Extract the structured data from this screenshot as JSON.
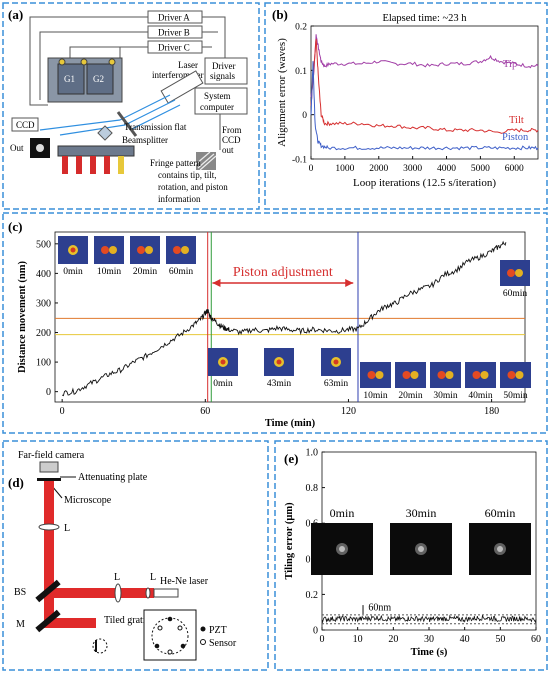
{
  "colors": {
    "frame": "#3a8fd8",
    "tip": "#a13ea6",
    "tilt": "#d62f2f",
    "piston": "#3e5fc8",
    "orange_line": "#e07a2e",
    "yellow_line": "#e7c83a",
    "red_beam": "#e02a2a",
    "black": "#111111"
  },
  "panel_a": {
    "label": "(a)",
    "drivers": [
      "Driver A",
      "Driver B",
      "Driver C"
    ],
    "driver_signals": [
      "Driver",
      "signals"
    ],
    "gratings": [
      "G1",
      "G2"
    ],
    "laser": [
      "Laser",
      "interferometer"
    ],
    "system_computer": [
      "System",
      "computer"
    ],
    "ccd": "CCD",
    "out": "Out",
    "transmission_flat": "Transmission flat",
    "beamsplitter": "Beamsplitter",
    "from_ccd": [
      "From",
      "CCD",
      "out"
    ],
    "fringe": [
      "Fringe pattern",
      "contains tip, tilt,",
      "rotation, and piston",
      "information"
    ]
  },
  "panel_b": {
    "label": "(b)",
    "note": "Elapsed time: ~23 h",
    "series_labels": {
      "tip": "Tip",
      "tilt": "Tilt",
      "piston": "Piston"
    }
  },
  "panel_c": {
    "label": "(c)",
    "annotation": "Piston adjustment",
    "top_left_frames": [
      "0min",
      "10min",
      "20min",
      "60min"
    ],
    "middle_frames": [
      "0min",
      "43min",
      "63min"
    ],
    "right_frames": [
      "10min",
      "20min",
      "30min",
      "40min",
      "50min"
    ],
    "end_frame": "60min"
  },
  "panel_d": {
    "label": "(d)",
    "far_field": "Far-field camera",
    "attenuating": "Attenuating plate",
    "microscope": "Microscope",
    "lens": "L",
    "bs": "BS",
    "mirror": "M",
    "laser": "He-Ne laser",
    "tiled": "Tiled gratings",
    "pzt": "PZT",
    "sensor": "Sensor"
  },
  "panel_e": {
    "label": "(e)",
    "frames": [
      "0min",
      "30min",
      "60min"
    ],
    "annotation": "60nm"
  },
  "chart_data": [
    {
      "id": "b",
      "type": "line",
      "title": "Elapsed time: ~23 h",
      "xlabel": "Loop iterations (12.5 s/iteration)",
      "ylabel": "Alignment error (waves)",
      "xlim": [
        0,
        6700
      ],
      "ylim": [
        -0.1,
        0.2
      ],
      "xticks": [
        0,
        1000,
        2000,
        3000,
        4000,
        5000,
        6000
      ],
      "xtick_labels": [
        "0",
        "1000",
        "2000",
        "3000",
        "4000",
        "5000",
        "6000"
      ],
      "yticks": [
        -0.1,
        0,
        0.1,
        0.2
      ],
      "ytick_labels": [
        "-0.1",
        "0",
        "0.1",
        "0.2"
      ],
      "series": [
        {
          "name": "Tip",
          "color": "#a13ea6",
          "x": [
            0,
            80,
            150,
            220,
            300,
            400,
            600,
            1000,
            1500,
            2000,
            2500,
            3000,
            3500,
            4000,
            4500,
            5000,
            5300,
            5600,
            6000,
            6400,
            6700
          ],
          "y": [
            0.04,
            0.09,
            0.18,
            0.15,
            0.12,
            0.11,
            0.115,
            0.115,
            0.115,
            0.12,
            0.115,
            0.115,
            0.11,
            0.115,
            0.115,
            0.12,
            0.13,
            0.12,
            0.115,
            0.11,
            0.11
          ]
        },
        {
          "name": "Tilt",
          "color": "#d62f2f",
          "x": [
            0,
            80,
            150,
            220,
            300,
            400,
            600,
            1000,
            1500,
            2000,
            2500,
            3000,
            3500,
            4000,
            4500,
            5000,
            5500,
            6000,
            6400,
            6700
          ],
          "y": [
            0.02,
            0.1,
            0.17,
            0.08,
            0.0,
            -0.02,
            -0.02,
            -0.02,
            -0.02,
            -0.025,
            -0.025,
            -0.03,
            -0.03,
            -0.035,
            -0.035,
            -0.035,
            -0.04,
            -0.035,
            -0.035,
            -0.035
          ]
        },
        {
          "name": "Piston",
          "color": "#3e5fc8",
          "x": [
            0,
            60,
            120,
            200,
            300,
            500,
            1000,
            1500,
            2000,
            2500,
            3000,
            3500,
            4000,
            4500,
            5000,
            5500,
            6000,
            6400,
            6700
          ],
          "y": [
            0.0,
            0.12,
            -0.02,
            -0.06,
            -0.07,
            -0.075,
            -0.075,
            -0.075,
            -0.075,
            -0.075,
            -0.075,
            -0.075,
            -0.075,
            -0.075,
            -0.075,
            -0.075,
            -0.075,
            -0.075,
            -0.075
          ]
        }
      ]
    },
    {
      "id": "c",
      "type": "line",
      "xlabel": "Time (min)",
      "ylabel": "Distance movement (nm)",
      "xlim": [
        -3,
        194
      ],
      "ylim": [
        -35,
        540
      ],
      "xticks": [
        0,
        60,
        120,
        180
      ],
      "xtick_labels": [
        "0",
        "60",
        "120",
        "180"
      ],
      "yticks": [
        0,
        100,
        200,
        300,
        400,
        500
      ],
      "ytick_labels": [
        "0",
        "100",
        "200",
        "300",
        "400",
        "500"
      ],
      "vlines": [
        {
          "x": 61,
          "color": "#d62f2f"
        },
        {
          "x": 62.5,
          "color": "#2f9a3a"
        },
        {
          "x": 124,
          "color": "#2f3fb0"
        }
      ],
      "hlines": [
        {
          "y": 248,
          "color": "#e07a2e"
        },
        {
          "y": 193,
          "color": "#e7c83a"
        }
      ],
      "series": [
        {
          "name": "",
          "color": "#111111",
          "x": [
            0,
            5,
            10,
            15,
            20,
            25,
            30,
            35,
            40,
            45,
            50,
            55,
            58,
            60,
            61,
            62,
            64,
            66,
            68,
            70,
            75,
            80,
            85,
            90,
            95,
            100,
            105,
            110,
            115,
            120,
            124,
            128,
            132,
            136,
            140,
            145,
            150,
            155,
            160,
            165,
            170,
            175,
            180,
            183,
            186
          ],
          "y": [
            -5,
            0,
            20,
            40,
            60,
            75,
            100,
            120,
            145,
            170,
            195,
            225,
            245,
            265,
            275,
            255,
            240,
            225,
            215,
            210,
            200,
            210,
            205,
            215,
            210,
            205,
            210,
            208,
            205,
            210,
            212,
            240,
            270,
            290,
            300,
            330,
            345,
            360,
            395,
            410,
            440,
            455,
            475,
            490,
            505
          ]
        }
      ]
    },
    {
      "id": "e",
      "type": "line",
      "xlabel": "Time (s)",
      "ylabel": "Tiling error (μm)",
      "xlim": [
        0,
        60
      ],
      "ylim": [
        0,
        1.0
      ],
      "xticks": [
        0,
        10,
        20,
        30,
        40,
        50,
        60
      ],
      "xtick_labels": [
        "0",
        "10",
        "20",
        "30",
        "40",
        "50",
        "60"
      ],
      "yticks": [
        0,
        0.2,
        0.4,
        0.6,
        0.8,
        1.0
      ],
      "ytick_labels": [
        "0",
        "0.2",
        "0.4",
        "0.6",
        "0.8",
        "1.0"
      ],
      "series": [
        {
          "name": "",
          "color": "#111111",
          "x": [
            0,
            5,
            10,
            15,
            20,
            25,
            30,
            35,
            40,
            45,
            50,
            55,
            60
          ],
          "y": [
            0.06,
            0.065,
            0.06,
            0.07,
            0.06,
            0.065,
            0.06,
            0.065,
            0.06,
            0.07,
            0.06,
            0.065,
            0.06
          ]
        }
      ]
    }
  ]
}
